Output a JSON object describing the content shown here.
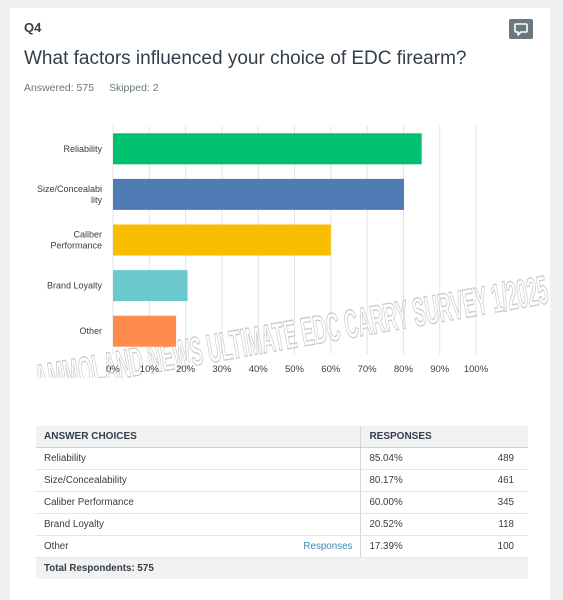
{
  "question": {
    "number": "Q4",
    "title": "What factors influenced your choice of EDC firearm?",
    "answered": "Answered: 575",
    "skipped": "Skipped: 2"
  },
  "icons": {
    "comment": "comment-bubble-icon"
  },
  "chart_data": {
    "type": "bar",
    "orientation": "horizontal",
    "categories": [
      [
        "Reliability"
      ],
      [
        "Size/Concealabi",
        "lity"
      ],
      [
        "Caliber",
        "Performance"
      ],
      [
        "Brand Loyalty"
      ],
      [
        "Other"
      ]
    ],
    "values": [
      85.04,
      80.17,
      60.0,
      20.52,
      17.39
    ],
    "colors": [
      "#00bf6f",
      "#507cb6",
      "#f9be00",
      "#6bc8cd",
      "#ff8b4f"
    ],
    "xlim": [
      0,
      100
    ],
    "xticks": [
      "0%",
      "10%",
      "20%",
      "30%",
      "40%",
      "50%",
      "60%",
      "70%",
      "80%",
      "90%",
      "100%"
    ],
    "grid": true,
    "watermark": "AMMOLAND NEWS ULTIMATE EDC CARRY SURVEY 1/2025"
  },
  "table": {
    "headers": [
      "ANSWER CHOICES",
      "RESPONSES"
    ],
    "rows": [
      {
        "choice": "Reliability",
        "link": "",
        "percent": "85.04%",
        "count": "489"
      },
      {
        "choice": "Size/Concealability",
        "link": "",
        "percent": "80.17%",
        "count": "461"
      },
      {
        "choice": "Caliber Performance",
        "link": "",
        "percent": "60.00%",
        "count": "345"
      },
      {
        "choice": "Brand Loyalty",
        "link": "",
        "percent": "20.52%",
        "count": "118"
      },
      {
        "choice": "Other",
        "link": "Responses",
        "percent": "17.39%",
        "count": "100"
      }
    ],
    "total": "Total Respondents: 575"
  }
}
